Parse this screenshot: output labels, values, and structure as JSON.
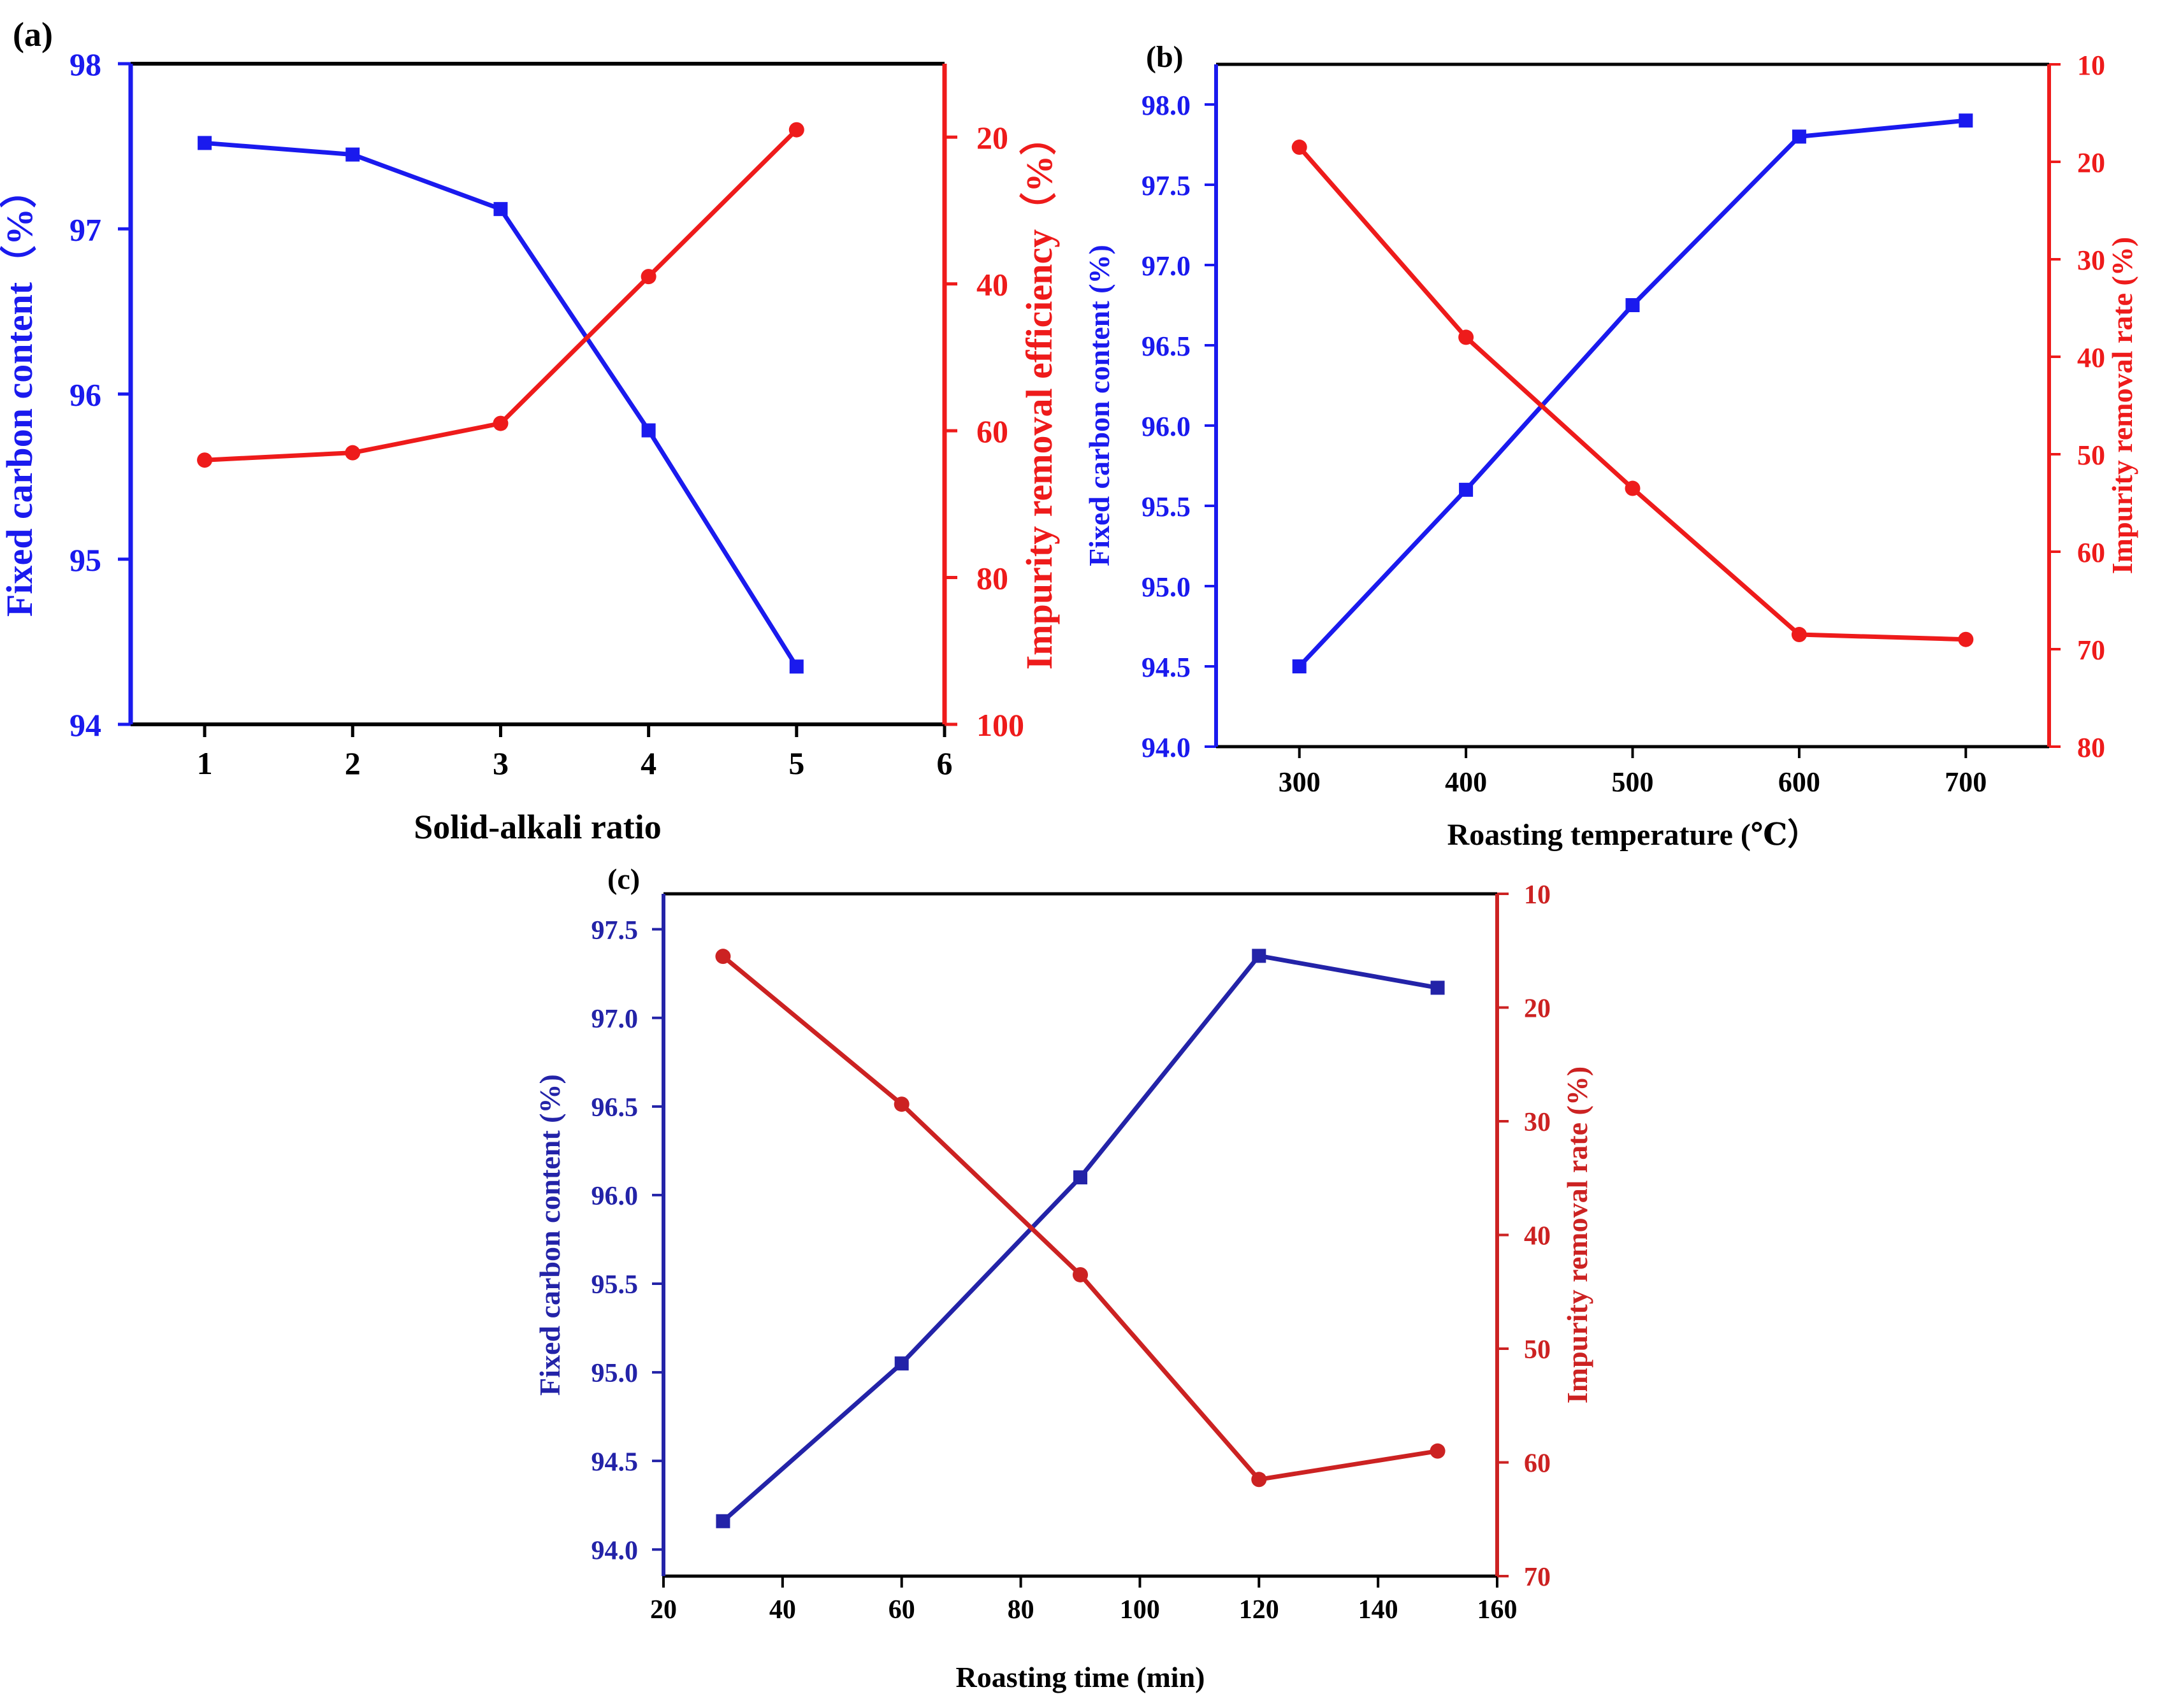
{
  "colors": {
    "blue": "#1a1aee",
    "red": "#ee1b1b",
    "navy": "#2323a8",
    "crimson": "#cc2222",
    "black": "#000000"
  },
  "chart_data": [
    {
      "type": "line",
      "panel_label": "(a)",
      "xlabel": "Solid-alkali ratio",
      "xlim": [
        0.5,
        6
      ],
      "xticks": [
        1,
        2,
        3,
        4,
        5,
        6
      ],
      "ylabel_left": "Fixed carbon content（%）",
      "ylim_left": [
        94,
        98
      ],
      "yticks_left": [
        94,
        95,
        96,
        97,
        98
      ],
      "ylabel_right": "Impurity removal efficiency（%）",
      "ylim_right": [
        100,
        10
      ],
      "right_axis_inverted": true,
      "yticks_right": [
        20,
        40,
        60,
        80,
        100
      ],
      "grid": false,
      "series": [
        {
          "axis": "left",
          "marker": "square",
          "color": "blue",
          "x": [
            1,
            2,
            3,
            4,
            5
          ],
          "values": [
            97.52,
            97.45,
            97.12,
            95.78,
            94.35
          ]
        },
        {
          "axis": "right",
          "marker": "circle",
          "color": "red",
          "x": [
            1,
            2,
            3,
            4,
            5
          ],
          "values": [
            64,
            63,
            59,
            39,
            19
          ]
        }
      ]
    },
    {
      "type": "line",
      "panel_label": "(b)",
      "xlabel": "Roasting temperature (℃）",
      "xlim": [
        250,
        750
      ],
      "xticks": [
        300,
        400,
        500,
        600,
        700
      ],
      "ylabel_left": "Fixed carbon content (%)",
      "ylim_left": [
        94.0,
        98.25
      ],
      "yticks_left": [
        "94.0",
        "94.5",
        "95.0",
        "95.5",
        "96.0",
        "96.5",
        "97.0",
        "97.5",
        "98.0"
      ],
      "ylabel_right": "Impurity removal rate (%)",
      "ylim_right": [
        80,
        10
      ],
      "right_axis_inverted": true,
      "yticks_right": [
        10,
        20,
        30,
        40,
        50,
        60,
        70,
        80
      ],
      "grid": false,
      "series": [
        {
          "axis": "left",
          "marker": "square",
          "color": "blue",
          "x": [
            300,
            400,
            500,
            600,
            700
          ],
          "values": [
            94.5,
            95.6,
            96.75,
            97.8,
            97.9
          ]
        },
        {
          "axis": "right",
          "marker": "circle",
          "color": "red",
          "x": [
            300,
            400,
            500,
            600,
            700
          ],
          "values": [
            18.5,
            38.0,
            53.5,
            68.5,
            69.0
          ]
        }
      ]
    },
    {
      "type": "line",
      "panel_label": "(c)",
      "xlabel": "Roasting time (min)",
      "xlim": [
        20,
        160
      ],
      "xticks": [
        20,
        40,
        60,
        80,
        100,
        120,
        140,
        160
      ],
      "ylabel_left": "Fixed carbon content (%)",
      "ylim_left": [
        93.85,
        97.7
      ],
      "yticks_left": [
        "94.0",
        "94.5",
        "95.0",
        "95.5",
        "96.0",
        "96.5",
        "97.0",
        "97.5"
      ],
      "ylabel_right": "Impurity removal rate (%)",
      "ylim_right": [
        70,
        10
      ],
      "right_axis_inverted": true,
      "yticks_right": [
        10,
        20,
        30,
        40,
        50,
        60,
        70
      ],
      "grid": false,
      "series": [
        {
          "axis": "left",
          "marker": "square",
          "color": "navy",
          "x": [
            30,
            60,
            90,
            120,
            150
          ],
          "values": [
            94.16,
            95.05,
            96.1,
            97.35,
            97.17
          ]
        },
        {
          "axis": "right",
          "marker": "circle",
          "color": "crimson",
          "x": [
            30,
            60,
            90,
            120,
            150
          ],
          "values": [
            15.5,
            28.5,
            43.5,
            61.5,
            59.0
          ]
        }
      ]
    }
  ]
}
